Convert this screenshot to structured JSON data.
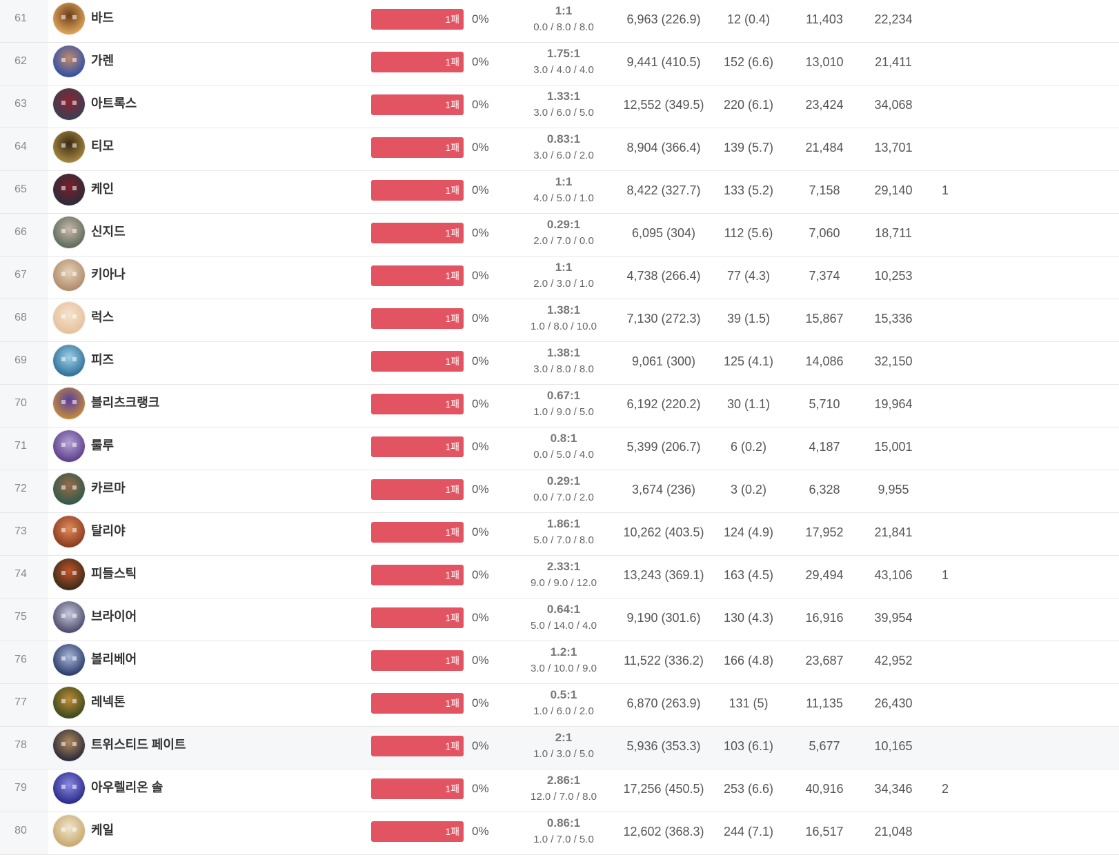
{
  "rows": [
    {
      "rank": "61",
      "name": "바드",
      "bar_label": "1패",
      "winrate": "0%",
      "kda_ratio": "1:1",
      "kda_detail": "0.0 / 8.0  / 8.0",
      "damage": "6,963 (226.9)",
      "cs": "12 (0.4)",
      "col_a": "11,403",
      "col_b": "22,234",
      "col_c": "",
      "avatar_colors": [
        "#e0a35a",
        "#6b3f1c"
      ],
      "highlight": false
    },
    {
      "rank": "62",
      "name": "가렌",
      "bar_label": "1패",
      "winrate": "0%",
      "kda_ratio": "1.75:1",
      "kda_detail": "3.0 / 4.0  / 4.0",
      "damage": "9,441 (410.5)",
      "cs": "152 (6.6)",
      "col_a": "13,010",
      "col_b": "21,411",
      "col_c": "",
      "avatar_colors": [
        "#2f4fa8",
        "#c28a6a"
      ],
      "highlight": false
    },
    {
      "rank": "63",
      "name": "아트록스",
      "bar_label": "1패",
      "winrate": "0%",
      "kda_ratio": "1.33:1",
      "kda_detail": "3.0 / 6.0  / 5.0",
      "damage": "12,552 (349.5)",
      "cs": "220 (6.1)",
      "col_a": "23,424",
      "col_b": "34,068",
      "col_c": "",
      "avatar_colors": [
        "#3a3f55",
        "#8a2430"
      ],
      "highlight": false
    },
    {
      "rank": "64",
      "name": "티모",
      "bar_label": "1패",
      "winrate": "0%",
      "kda_ratio": "0.83:1",
      "kda_detail": "3.0 / 6.0  / 2.0",
      "damage": "8,904 (366.4)",
      "cs": "139 (5.7)",
      "col_a": "21,484",
      "col_b": "13,701",
      "col_c": "",
      "avatar_colors": [
        "#a4873f",
        "#3b2a14"
      ],
      "highlight": false
    },
    {
      "rank": "65",
      "name": "케인",
      "bar_label": "1패",
      "winrate": "0%",
      "kda_ratio": "1:1",
      "kda_detail": "4.0 / 5.0  / 1.0",
      "damage": "8,422 (327.7)",
      "cs": "133 (5.2)",
      "col_a": "7,158",
      "col_b": "29,140",
      "col_c": "1",
      "avatar_colors": [
        "#2b2b3a",
        "#7a1f2a"
      ],
      "highlight": false
    },
    {
      "rank": "66",
      "name": "신지드",
      "bar_label": "1패",
      "winrate": "0%",
      "kda_ratio": "0.29:1",
      "kda_detail": "2.0 / 7.0  / 0.0",
      "damage": "6,095 (304)",
      "cs": "112 (5.6)",
      "col_a": "7,060",
      "col_b": "18,711",
      "col_c": "",
      "avatar_colors": [
        "#5c6a5a",
        "#c9b8a8"
      ],
      "highlight": false
    },
    {
      "rank": "67",
      "name": "키아나",
      "bar_label": "1패",
      "winrate": "0%",
      "kda_ratio": "1:1",
      "kda_detail": "2.0 / 3.0  / 1.0",
      "damage": "4,738 (266.4)",
      "cs": "77 (4.3)",
      "col_a": "7,374",
      "col_b": "10,253",
      "col_c": "",
      "avatar_colors": [
        "#b08a6a",
        "#e6d2b8"
      ],
      "highlight": false
    },
    {
      "rank": "68",
      "name": "럭스",
      "bar_label": "1패",
      "winrate": "0%",
      "kda_ratio": "1.38:1",
      "kda_detail": "1.0 / 8.0  / 10.0",
      "damage": "7,130 (272.3)",
      "cs": "39 (1.5)",
      "col_a": "15,867",
      "col_b": "15,336",
      "col_c": "",
      "avatar_colors": [
        "#e7c09a",
        "#f4e3cf"
      ],
      "highlight": false
    },
    {
      "rank": "69",
      "name": "피즈",
      "bar_label": "1패",
      "winrate": "0%",
      "kda_ratio": "1.38:1",
      "kda_detail": "3.0 / 8.0  / 8.0",
      "damage": "9,061 (300)",
      "cs": "125 (4.1)",
      "col_a": "14,086",
      "col_b": "32,150",
      "col_c": "",
      "avatar_colors": [
        "#2f6f9a",
        "#9fd0e8"
      ],
      "highlight": false
    },
    {
      "rank": "70",
      "name": "블리츠크랭크",
      "bar_label": "1패",
      "winrate": "0%",
      "kda_ratio": "0.67:1",
      "kda_detail": "1.0 / 9.0  / 5.0",
      "damage": "6,192 (220.2)",
      "cs": "30 (1.1)",
      "col_a": "5,710",
      "col_b": "19,964",
      "col_c": "",
      "avatar_colors": [
        "#c28b3a",
        "#5a3fa0"
      ],
      "highlight": false
    },
    {
      "rank": "71",
      "name": "룰루",
      "bar_label": "1패",
      "winrate": "0%",
      "kda_ratio": "0.8:1",
      "kda_detail": "0.0 / 5.0  / 4.0",
      "damage": "5,399 (206.7)",
      "cs": "6 (0.2)",
      "col_a": "4,187",
      "col_b": "15,001",
      "col_c": "",
      "avatar_colors": [
        "#5b3f8a",
        "#b7a2d6"
      ],
      "highlight": false
    },
    {
      "rank": "72",
      "name": "카르마",
      "bar_label": "1패",
      "winrate": "0%",
      "kda_ratio": "0.29:1",
      "kda_detail": "0.0 / 7.0  / 2.0",
      "damage": "3,674 (236)",
      "cs": "3 (0.2)",
      "col_a": "6,328",
      "col_b": "9,955",
      "col_c": "",
      "avatar_colors": [
        "#2f5a4a",
        "#9a6a4a"
      ],
      "highlight": false
    },
    {
      "rank": "73",
      "name": "탈리야",
      "bar_label": "1패",
      "winrate": "0%",
      "kda_ratio": "1.86:1",
      "kda_detail": "5.0 / 7.0  / 8.0",
      "damage": "10,262 (403.5)",
      "cs": "124 (4.9)",
      "col_a": "17,952",
      "col_b": "21,841",
      "col_c": "",
      "avatar_colors": [
        "#8a3a1e",
        "#e08a5a"
      ],
      "highlight": false
    },
    {
      "rank": "74",
      "name": "피들스틱",
      "bar_label": "1패",
      "winrate": "0%",
      "kda_ratio": "2.33:1",
      "kda_detail": "9.0 / 9.0  / 12.0",
      "damage": "13,243 (369.1)",
      "cs": "163 (4.5)",
      "col_a": "29,494",
      "col_b": "43,106",
      "col_c": "1",
      "avatar_colors": [
        "#3b2a1a",
        "#c0552a"
      ],
      "highlight": false
    },
    {
      "rank": "75",
      "name": "브라이어",
      "bar_label": "1패",
      "winrate": "0%",
      "kda_ratio": "0.64:1",
      "kda_detail": "5.0 / 14.0  / 4.0",
      "damage": "9,190 (301.6)",
      "cs": "130 (4.3)",
      "col_a": "16,916",
      "col_b": "39,954",
      "col_c": "",
      "avatar_colors": [
        "#4a4a6a",
        "#c8c8dc"
      ],
      "highlight": false
    },
    {
      "rank": "76",
      "name": "볼리베어",
      "bar_label": "1패",
      "winrate": "0%",
      "kda_ratio": "1.2:1",
      "kda_detail": "3.0 / 10.0  / 9.0",
      "damage": "11,522 (336.2)",
      "cs": "166 (4.8)",
      "col_a": "23,687",
      "col_b": "42,952",
      "col_c": "",
      "avatar_colors": [
        "#2a3a6a",
        "#a8b8d8"
      ],
      "highlight": false
    },
    {
      "rank": "77",
      "name": "레넥톤",
      "bar_label": "1패",
      "winrate": "0%",
      "kda_ratio": "0.5:1",
      "kda_detail": "1.0 / 6.0  / 2.0",
      "damage": "6,870 (263.9)",
      "cs": "131 (5)",
      "col_a": "11,135",
      "col_b": "26,430",
      "col_c": "",
      "avatar_colors": [
        "#3a4a1a",
        "#c08a3a"
      ],
      "highlight": false
    },
    {
      "rank": "78",
      "name": "트위스티드 페이트",
      "bar_label": "1패",
      "winrate": "0%",
      "kda_ratio": "2:1",
      "kda_detail": "1.0 / 3.0  / 5.0",
      "damage": "5,936 (353.3)",
      "cs": "103 (6.1)",
      "col_a": "5,677",
      "col_b": "10,165",
      "col_c": "",
      "avatar_colors": [
        "#2a2a3a",
        "#b08a5a"
      ],
      "highlight": true
    },
    {
      "rank": "79",
      "name": "아우렐리온 솔",
      "bar_label": "1패",
      "winrate": "0%",
      "kda_ratio": "2.86:1",
      "kda_detail": "12.0 / 7.0  / 8.0",
      "damage": "17,256 (450.5)",
      "cs": "253 (6.6)",
      "col_a": "40,916",
      "col_b": "34,346",
      "col_c": "2",
      "avatar_colors": [
        "#2a2a8a",
        "#8a8ae0"
      ],
      "highlight": false
    },
    {
      "rank": "80",
      "name": "케일",
      "bar_label": "1패",
      "winrate": "0%",
      "kda_ratio": "0.86:1",
      "kda_detail": "1.0 / 7.0  / 5.0",
      "damage": "12,602 (368.3)",
      "cs": "244 (7.1)",
      "col_a": "16,517",
      "col_b": "21,048",
      "col_c": "",
      "avatar_colors": [
        "#c8a86a",
        "#f0e6d0"
      ],
      "highlight": false
    }
  ]
}
